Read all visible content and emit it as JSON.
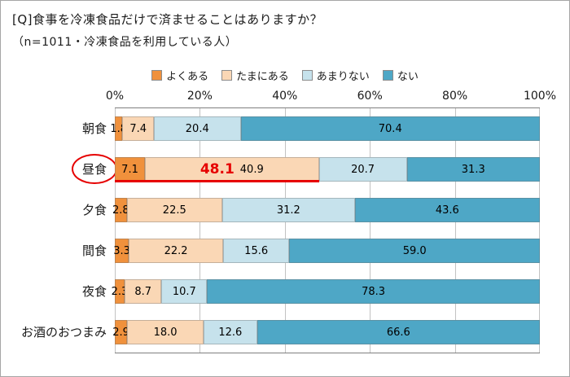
{
  "title": "[Q]食事を冷凍食品だけで済ませることはありますか？",
  "subtitle": "（n=1011・冷凍食品を利用している人）",
  "chart_data": {
    "type": "bar",
    "orientation": "horizontal-stacked",
    "unit": "%",
    "xlim": [
      0,
      100
    ],
    "x_ticks": [
      "0%",
      "20%",
      "40%",
      "60%",
      "80%",
      "100%"
    ],
    "legend_position": "top",
    "categories": [
      "朝食",
      "昼食",
      "夕食",
      "間食",
      "夜食",
      "お酒のおつまみ"
    ],
    "series": [
      {
        "name": "よくある",
        "color": "#f0913c",
        "values": [
          1.8,
          7.1,
          2.8,
          3.3,
          2.3,
          2.9
        ]
      },
      {
        "name": "たまにある",
        "color": "#fad7b5",
        "values": [
          7.4,
          40.9,
          22.5,
          22.2,
          8.7,
          18.0
        ]
      },
      {
        "name": "あまりない",
        "color": "#c6e2ec",
        "values": [
          20.4,
          20.7,
          31.2,
          15.6,
          10.7,
          12.6
        ]
      },
      {
        "name": "ない",
        "color": "#4ea7c6",
        "values": [
          70.4,
          31.3,
          43.6,
          59.0,
          78.3,
          66.6
        ]
      }
    ],
    "highlight": {
      "category": "昼食",
      "combined_label": "48.1",
      "note": "よくある+たまにある combined value shown in red bold with red underline; category circled in red"
    }
  }
}
